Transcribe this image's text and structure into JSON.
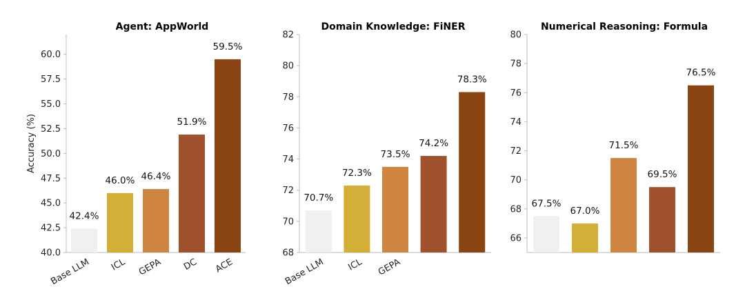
{
  "chart_data": [
    {
      "type": "bar",
      "title": "Agent: AppWorld",
      "ylabel": "Accuracy (%)",
      "ylim": [
        40,
        62
      ],
      "yticks": [
        "40.0",
        "42.5",
        "45.0",
        "47.5",
        "50.0",
        "52.5",
        "55.0",
        "57.5",
        "60.0"
      ],
      "categories": [
        "Base LLM",
        "ICL",
        "GEPA",
        "DC",
        "ACE"
      ],
      "values": [
        42.4,
        46.0,
        46.4,
        51.9,
        59.5
      ],
      "value_labels": [
        "42.4%",
        "46.0%",
        "46.4%",
        "51.9%",
        "59.5%"
      ],
      "colors": [
        "#f0f0f0",
        "#d4af37",
        "#cd853f",
        "#a0522d",
        "#8b4513"
      ]
    },
    {
      "type": "bar",
      "title": "Domain Knowledge: FiNER",
      "ylabel": "",
      "ylim": [
        68,
        82
      ],
      "yticks": [
        "68",
        "70",
        "72",
        "74",
        "76",
        "78",
        "80",
        "82"
      ],
      "categories": [
        "Base LLM",
        "ICL",
        "GEPA",
        "",
        ""
      ],
      "values": [
        70.7,
        72.3,
        73.5,
        74.2,
        78.3
      ],
      "value_labels": [
        "70.7%",
        "72.3%",
        "73.5%",
        "74.2%",
        "78.3%"
      ],
      "colors": [
        "#f0f0f0",
        "#d4af37",
        "#cd853f",
        "#a0522d",
        "#8b4513"
      ]
    },
    {
      "type": "bar",
      "title": "Numerical Reasoning: Formula",
      "ylabel": "",
      "ylim": [
        65,
        80
      ],
      "yticks": [
        "66",
        "68",
        "70",
        "72",
        "74",
        "76",
        "78",
        "80"
      ],
      "categories": [
        "",
        "",
        "",
        "",
        ""
      ],
      "values": [
        67.5,
        67.0,
        71.5,
        69.5,
        76.5
      ],
      "value_labels": [
        "67.5%",
        "67.0%",
        "71.5%",
        "69.5%",
        "76.5%"
      ],
      "colors": [
        "#f0f0f0",
        "#d4af37",
        "#cd853f",
        "#a0522d",
        "#8b4513"
      ]
    }
  ]
}
